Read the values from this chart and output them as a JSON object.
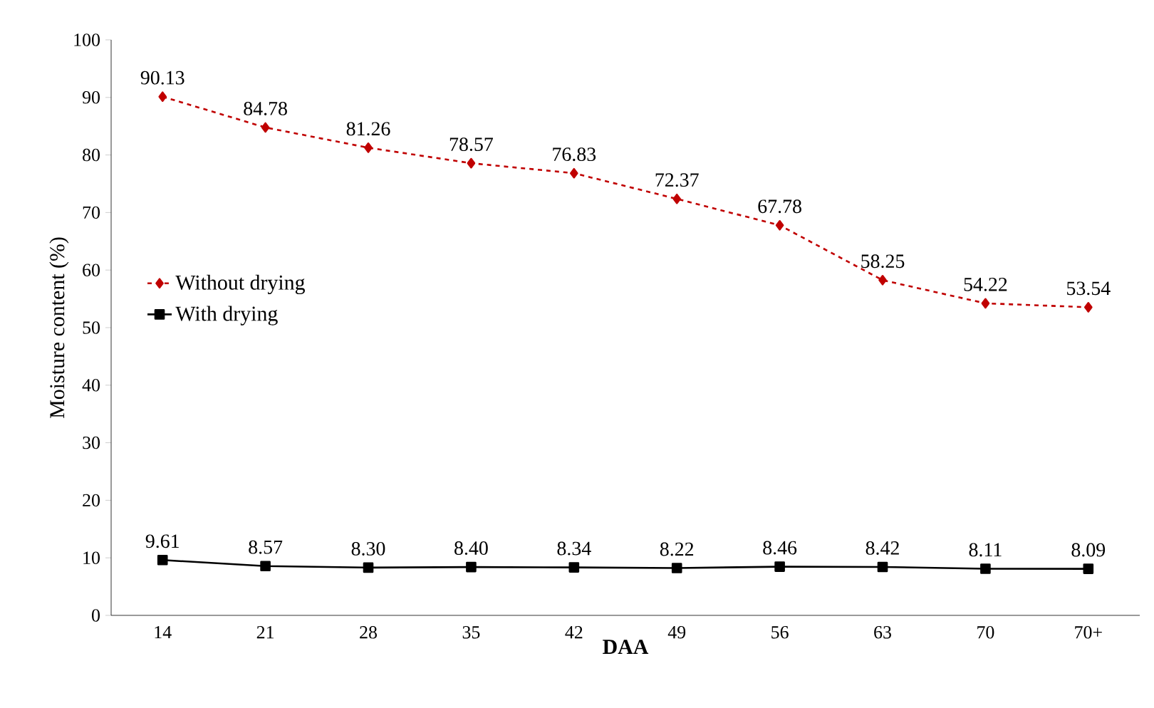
{
  "chart_data": {
    "type": "line",
    "xlabel": "DAA",
    "ylabel": "Moisture content (%)",
    "categories": [
      "14",
      "21",
      "28",
      "35",
      "42",
      "49",
      "56",
      "63",
      "70",
      "70+"
    ],
    "ylim": [
      0,
      100
    ],
    "yticks": [
      0,
      10,
      20,
      30,
      40,
      50,
      60,
      70,
      80,
      90,
      100
    ],
    "grid": false,
    "legend": "left",
    "series": [
      {
        "name": "Without drying",
        "color": "#c00000",
        "marker": "diamond",
        "line_style": "dashed",
        "values": [
          90.13,
          84.78,
          81.26,
          78.57,
          76.83,
          72.37,
          67.78,
          58.25,
          54.22,
          53.54
        ],
        "value_labels": [
          "90.13",
          "84.78",
          "81.26",
          "78.57",
          "76.83",
          "72.37",
          "67.78",
          "58.25",
          "54.22",
          "53.54"
        ]
      },
      {
        "name": "With drying",
        "color": "#000000",
        "marker": "square",
        "line_style": "solid",
        "values": [
          9.61,
          8.57,
          8.3,
          8.4,
          8.34,
          8.22,
          8.46,
          8.42,
          8.11,
          8.09
        ],
        "value_labels": [
          "9.61",
          "8.57",
          "8.30",
          "8.40",
          "8.34",
          "8.22",
          "8.46",
          "8.42",
          "8.11",
          "8.09"
        ]
      }
    ]
  }
}
